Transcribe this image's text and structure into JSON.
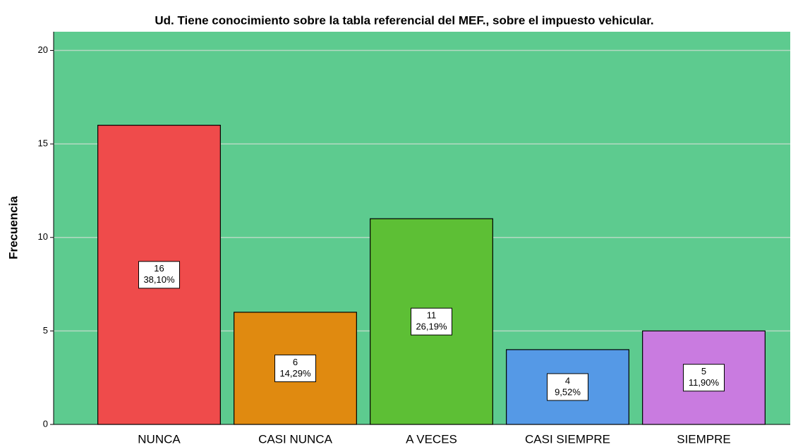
{
  "chart_data": {
    "type": "bar",
    "title": "Ud. Tiene conocimiento sobre la tabla referencial del MEF., sobre el impuesto vehicular.",
    "y_label": "Frecuencia",
    "categories": [
      "NUNCA",
      "CASI NUNCA",
      "A VECES",
      "CASI SIEMPRE",
      "SIEMPRE"
    ],
    "values": [
      16,
      6,
      11,
      4,
      5
    ],
    "percentages": [
      38.1,
      14.29,
      26.19,
      9.52,
      11.9
    ],
    "percentage_labels": [
      "38,10%",
      "14,29%",
      "26,19%",
      "9,52%",
      "11,90%"
    ],
    "colors": [
      "#ef4b4b",
      "#e08a10",
      "#5dbf35",
      "#5599e6",
      "#c97be0"
    ],
    "background": "#5dcb8f",
    "ylim": [
      0,
      21
    ],
    "yticks": [
      0,
      5,
      10,
      15,
      20
    ],
    "grid": true
  }
}
